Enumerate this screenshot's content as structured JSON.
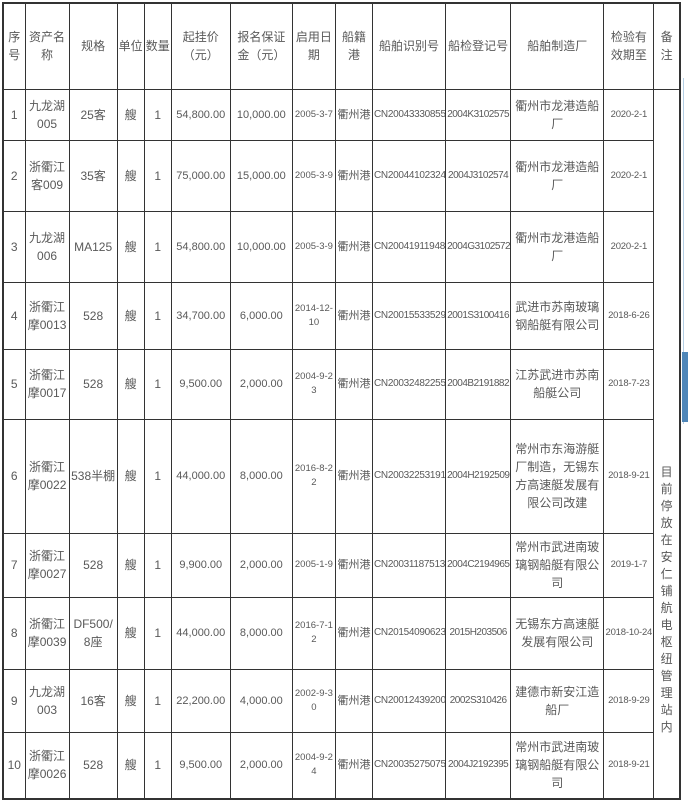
{
  "colors": {
    "border": "#333333",
    "text": "#595959",
    "scrollbar_thumb": "#4f86b8",
    "scrollbar_track": "#b5cfe4"
  },
  "table": {
    "headers": [
      "序号",
      "资产名称",
      "规格",
      "单位",
      "数量",
      "起挂价（元）",
      "报名保证金（元）",
      "启用日期",
      "船籍港",
      "船舶识别号",
      "船检登记号",
      "船舶制造厂",
      "检验有效期至",
      "备注"
    ],
    "rows": [
      [
        "1",
        "九龙湖005",
        "25客",
        "艘",
        "1",
        "54,800.00",
        "10,000.00",
        "2005-3-7",
        "衢州港",
        "CN20043330855",
        "2004K3102575",
        "衢州市龙港造船厂",
        "2020-2-1"
      ],
      [
        "2",
        "浙衢江客009",
        "35客",
        "艘",
        "1",
        "75,000.00",
        "15,000.00",
        "2005-3-9",
        "衢州港",
        "CN20044102324",
        "2004J3102574",
        "衢州市龙港造船厂",
        "2020-2-1"
      ],
      [
        "3",
        "九龙湖006",
        "MA125",
        "艘",
        "1",
        "54,800.00",
        "10,000.00",
        "2005-3-9",
        "衢州港",
        "CN20041911948",
        "2004G3102572",
        "衢州市龙港造船厂",
        "2020-2-1"
      ],
      [
        "4",
        "浙衢江摩0013",
        "528",
        "艘",
        "1",
        "34,700.00",
        "6,000.00",
        "2014-12-10",
        "衢州港",
        "CN20015533529",
        "2001S3100416",
        "武进市苏南玻璃钢船艇有限公司",
        "2018-6-26"
      ],
      [
        "5",
        "浙衢江摩0017",
        "528",
        "艘",
        "1",
        "9,500.00",
        "2,000.00",
        "2004-9-23",
        "衢州港",
        "CN20032482255",
        "2004B2191882",
        "江苏武进市苏南船艇公司",
        "2018-7-23"
      ],
      [
        "6",
        "浙衢江摩0022",
        "538半棚",
        "艘",
        "1",
        "44,000.00",
        "8,000.00",
        "2016-8-22",
        "衢州港",
        "CN20032253191",
        "2004H2192509",
        "常州市东海游艇厂制造，无锡东方高速艇发展有限公司改建",
        "2018-9-21"
      ],
      [
        "7",
        "浙衢江摩0027",
        "528",
        "艘",
        "1",
        "9,900.00",
        "2,000.00",
        "2005-1-9",
        "衢州港",
        "CN20031187513",
        "2004C2194965",
        "常州市武进南玻璃钢船艇有限公司",
        "2019-1-7"
      ],
      [
        "8",
        "浙衢江摩0039",
        "DF500/8座",
        "艘",
        "1",
        "44,000.00",
        "8,000.00",
        "2016-7-12",
        "衢州港",
        "CN20154090623",
        "2015H203506",
        "无锡东方高速艇发展有限公司",
        "2018-10-24"
      ],
      [
        "9",
        "九龙湖003",
        "16客",
        "艘",
        "1",
        "22,200.00",
        "4,000.00",
        "2002-9-30",
        "衢州港",
        "CN20012439200",
        "2002S310426",
        "建德市新安江造船厂",
        "2018-9-29"
      ],
      [
        "10",
        "浙衢江摩0026",
        "528",
        "艘",
        "1",
        "9,500.00",
        "2,000.00",
        "2004-9-24",
        "衢州港",
        "CN20035275075",
        "2004J2192395",
        "常州市武进南玻璃钢船艇有限公司",
        "2018-9-21"
      ]
    ],
    "remark": "目前停放在安仁铺航电枢纽管理站内"
  }
}
